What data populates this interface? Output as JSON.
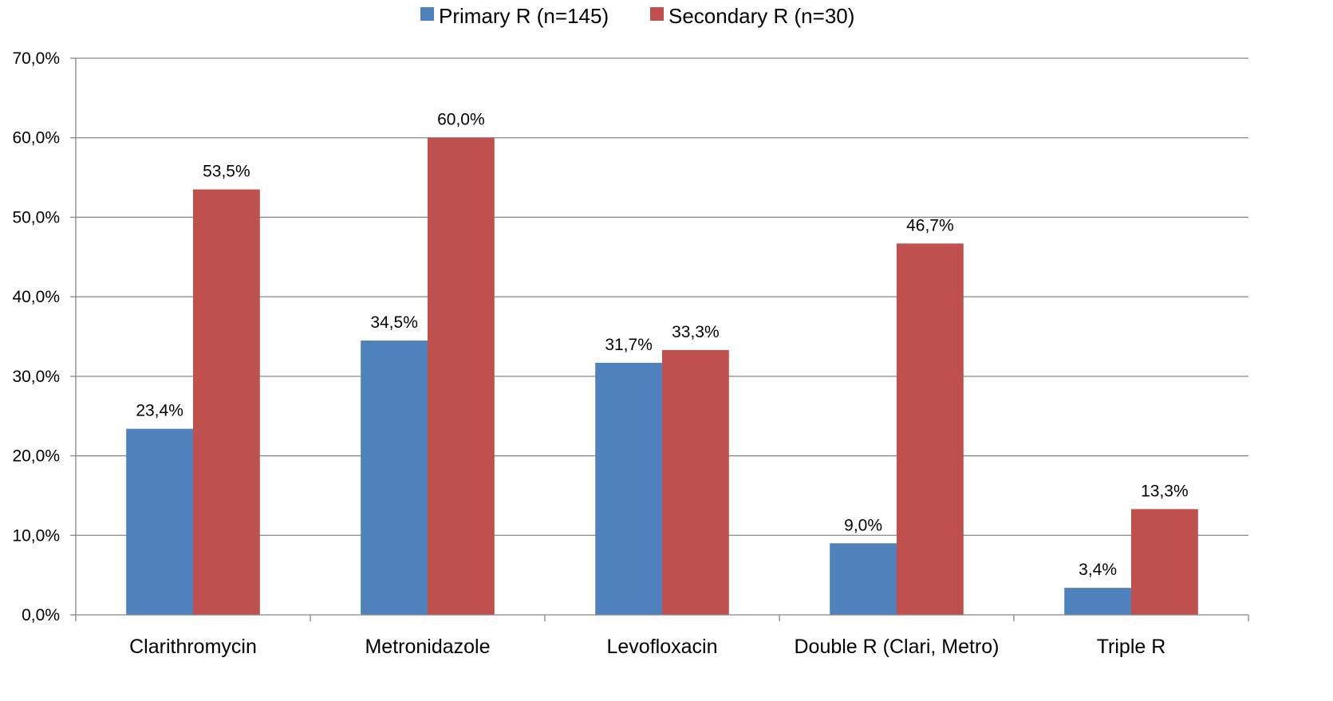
{
  "chart_data": {
    "type": "bar",
    "categories": [
      "Clarithromycin",
      "Metronidazole",
      "Levofloxacin",
      "Double R (Clari, Metro)",
      "Triple R"
    ],
    "series": [
      {
        "name": "Primary R (n=145)",
        "color": "#4f81bd",
        "values": [
          23.4,
          34.5,
          31.7,
          9.0,
          3.4
        ],
        "labels": [
          "23,4%",
          "34,5%",
          "31,7%",
          "9,0%",
          "3,4%"
        ]
      },
      {
        "name": "Secondary R (n=30)",
        "color": "#c0504d",
        "values": [
          53.5,
          60.0,
          33.3,
          46.7,
          13.3
        ],
        "labels": [
          "53,5%",
          "60,0%",
          "33,3%",
          "46,7%",
          "13,3%"
        ]
      }
    ],
    "ylim": [
      0,
      70
    ],
    "yticks": [
      0,
      10,
      20,
      30,
      40,
      50,
      60,
      70
    ],
    "ytick_labels": [
      "0,0%",
      "10,0%",
      "20,0%",
      "30,0%",
      "40,0%",
      "50,0%",
      "60,0%",
      "70,0%"
    ],
    "grid": true,
    "legend_position": "top",
    "gridline_color": "#868686",
    "axis_color": "#868686"
  }
}
